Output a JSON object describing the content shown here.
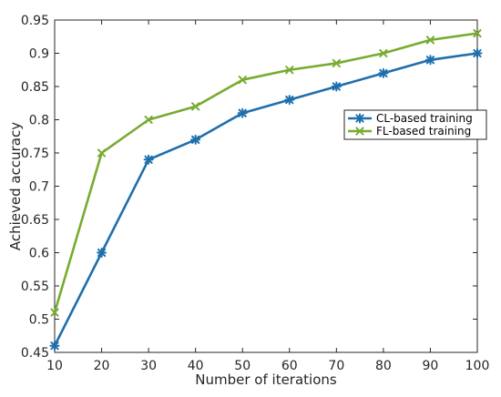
{
  "chart_data": {
    "type": "line",
    "xlabel": "Number of iterations",
    "ylabel": "Achieved accuracy",
    "xlim": [
      10,
      100
    ],
    "ylim": [
      0.45,
      0.95
    ],
    "x": [
      10,
      20,
      30,
      40,
      50,
      60,
      70,
      80,
      90,
      100
    ],
    "xticks": [
      "10",
      "20",
      "30",
      "40",
      "50",
      "60",
      "70",
      "80",
      "90",
      "100"
    ],
    "yticks": [
      "0.45",
      "0.5",
      "0.55",
      "0.6",
      "0.65",
      "0.7",
      "0.75",
      "0.8",
      "0.85",
      "0.9",
      "0.95"
    ],
    "grid": false,
    "legend_position": "right-middle",
    "series": [
      {
        "name": "CL-based training",
        "color": "#1f6fad",
        "marker": "asterisk",
        "values": [
          0.46,
          0.6,
          0.74,
          0.77,
          0.81,
          0.83,
          0.85,
          0.87,
          0.89,
          0.9
        ]
      },
      {
        "name": "FL-based training",
        "color": "#78ab30",
        "marker": "x",
        "values": [
          0.51,
          0.75,
          0.8,
          0.82,
          0.86,
          0.875,
          0.885,
          0.9,
          0.92,
          0.93
        ]
      }
    ]
  }
}
